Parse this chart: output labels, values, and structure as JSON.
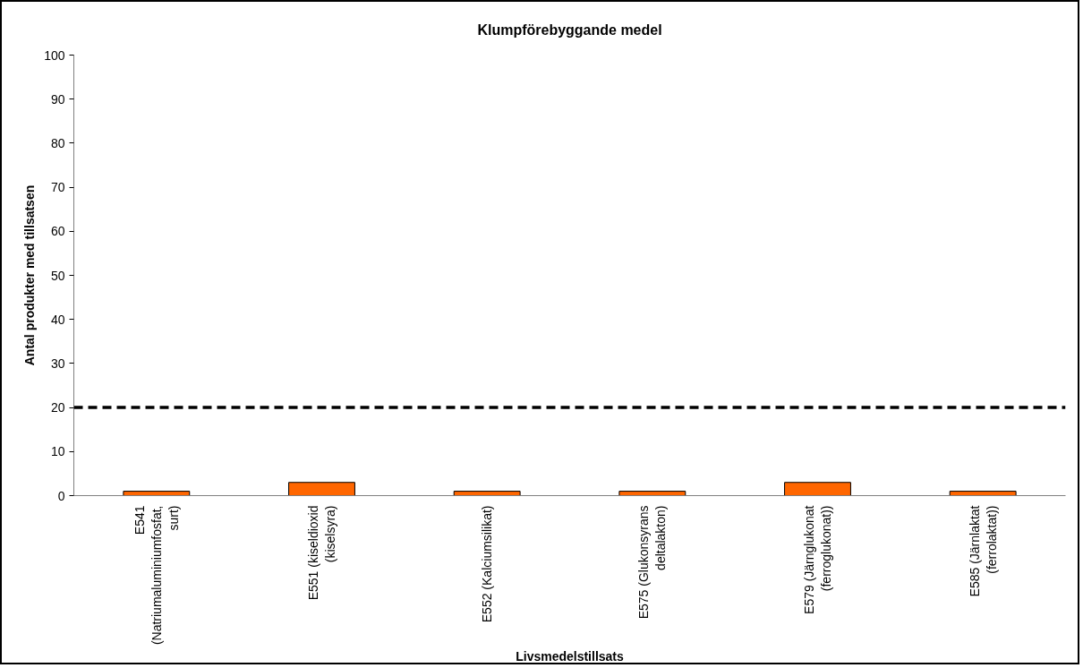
{
  "chart_data": {
    "type": "bar",
    "title": "Klumpförebyggande medel",
    "xlabel": "Livsmedelstillsats",
    "ylabel": "Antal produkter med tillsatsen",
    "categories": [
      "E541\n(Natriumaluminiumfosfat,\nsurt)",
      "E551 (kiseldioxid\n(kiselsyra)",
      "E552 (Kalciumsilikat)",
      "E575 (Glukonsyrans\ndeltalakton)",
      "E579 (Järnglukonat\n(ferroglukonat))",
      "E585 (Järnlaktat\n(ferrolaktat))"
    ],
    "values": [
      1,
      3,
      1,
      1,
      3,
      1
    ],
    "color": "#ff6600",
    "ylim": [
      0,
      100
    ],
    "yticks": [
      0,
      10,
      20,
      30,
      40,
      50,
      60,
      70,
      80,
      90,
      100
    ],
    "grid": false,
    "ref_lines": [
      {
        "axis": "y",
        "value": 20,
        "color": "#000000",
        "line_style": "dashed"
      }
    ]
  }
}
